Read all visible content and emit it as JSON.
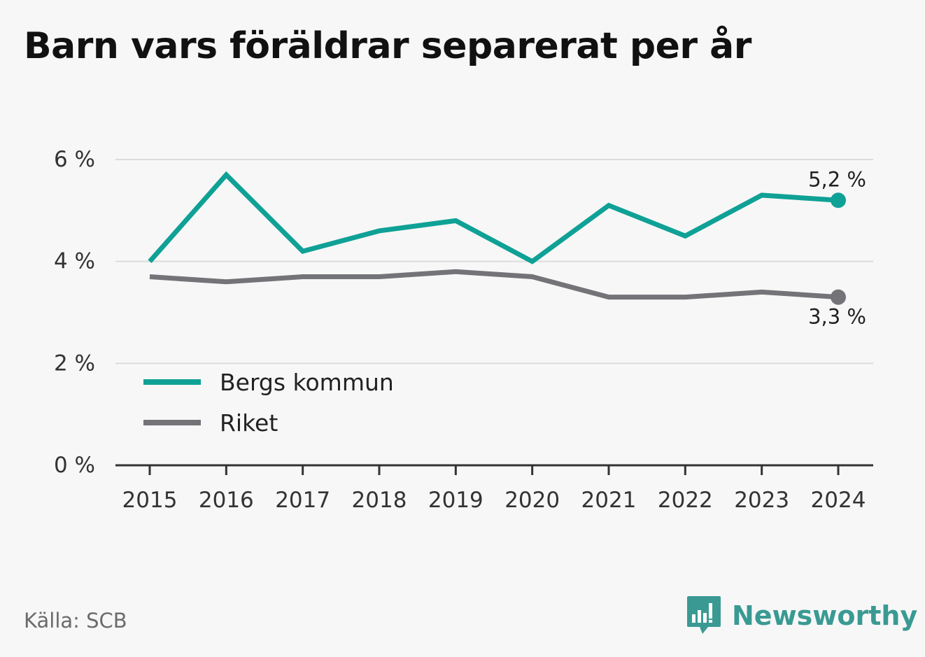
{
  "chart_data": {
    "type": "line",
    "title": "Barn vars föräldrar separerat per år",
    "x": [
      "2015",
      "2016",
      "2017",
      "2018",
      "2019",
      "2020",
      "2021",
      "2022",
      "2023",
      "2024"
    ],
    "ylim": [
      0,
      6
    ],
    "y_ticks": [
      {
        "value": 0,
        "label": "0 %"
      },
      {
        "value": 2,
        "label": "2 %"
      },
      {
        "value": 4,
        "label": "4 %"
      },
      {
        "value": 6,
        "label": "6 %"
      }
    ],
    "grid": true,
    "legend_position": "bottom-left",
    "series": [
      {
        "name": "Bergs kommun",
        "color": "#0fa196",
        "values": [
          4.0,
          5.7,
          4.2,
          4.6,
          4.8,
          4.0,
          5.1,
          4.5,
          5.3,
          5.2
        ],
        "end_label": "5,2 %"
      },
      {
        "name": "Riket",
        "color": "#737378",
        "values": [
          3.7,
          3.6,
          3.7,
          3.7,
          3.8,
          3.7,
          3.3,
          3.3,
          3.4,
          3.3
        ],
        "end_label": "3,3 %"
      }
    ]
  },
  "footer": {
    "source": "Källa: SCB",
    "brand": "Newsworthy",
    "brand_color": "#3a9a93"
  }
}
